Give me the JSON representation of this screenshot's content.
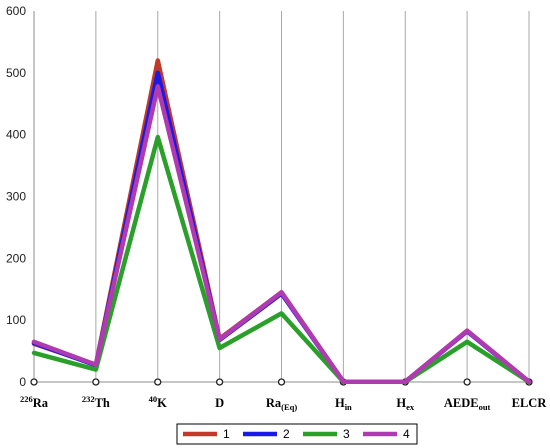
{
  "chart_data": {
    "type": "line",
    "title": "",
    "xlabel": "",
    "ylabel": "",
    "ylim": [
      0,
      600
    ],
    "yticks": [
      0,
      100,
      200,
      300,
      400,
      500,
      600
    ],
    "grid": "vertical",
    "legend": "bottom",
    "categories": [
      {
        "pre": "226",
        "main": "Ra",
        "sub": ""
      },
      {
        "pre": "232",
        "main": "Th",
        "sub": ""
      },
      {
        "pre": "40",
        "main": "K",
        "sub": ""
      },
      {
        "pre": "",
        "main": "D",
        "sub": ""
      },
      {
        "pre": "",
        "main": "Ra",
        "sub": "(Eq)"
      },
      {
        "pre": "",
        "main": "H",
        "sub": "in"
      },
      {
        "pre": "",
        "main": "H",
        "sub": "ex"
      },
      {
        "pre": "",
        "main": "AEDE",
        "sub": "out"
      },
      {
        "pre": "",
        "main": "ELCR",
        "sub": ""
      }
    ],
    "series": [
      {
        "name": "1",
        "color": "#C0392B",
        "values": [
          62,
          28,
          520,
          70,
          145,
          0.5,
          0.5,
          83,
          0.5
        ]
      },
      {
        "name": "2",
        "color": "#1A1AE6",
        "values": [
          63,
          27,
          500,
          68,
          143,
          0.5,
          0.5,
          82,
          0.5
        ]
      },
      {
        "name": "3",
        "color": "#2AA02A",
        "values": [
          47,
          20,
          396,
          55,
          111,
          0.4,
          0.4,
          65,
          0.4
        ]
      },
      {
        "name": "4",
        "color": "#B03AB0",
        "values": [
          65,
          28,
          478,
          69,
          145,
          0.5,
          0.5,
          83,
          0.5
        ]
      }
    ]
  }
}
